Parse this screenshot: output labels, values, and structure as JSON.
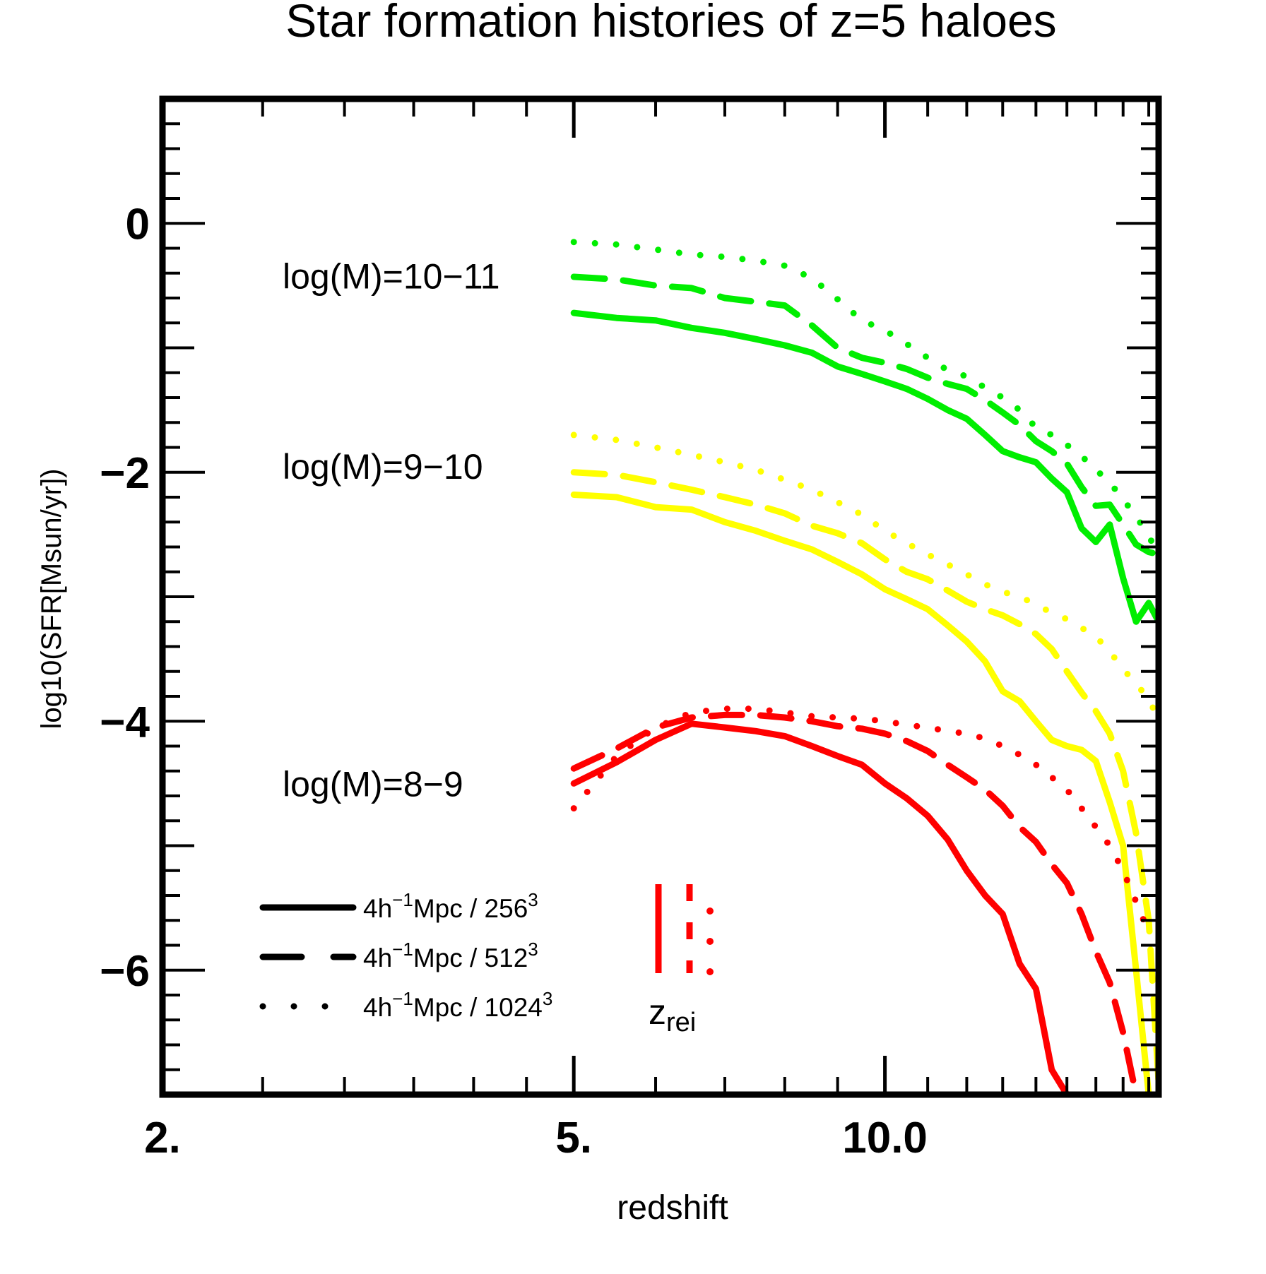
{
  "chart_data": {
    "type": "line",
    "title": "Star formation histories of z=5 haloes",
    "xlabel": "redshift",
    "ylabel_main": "log10(SFR[Msun/yr])",
    "x_scale": "log",
    "xlim": [
      2.0,
      18.4
    ],
    "ylim": [
      -7.0,
      1.0
    ],
    "x_major_ticks": [
      2.0,
      5.0,
      10.0
    ],
    "x_tick_labels": [
      "2.",
      "5.",
      "10.0"
    ],
    "y_major_ticks": [
      0,
      -2,
      -4,
      -6
    ],
    "y_tick_labels": [
      "0",
      "−2",
      "−4",
      "−6"
    ],
    "grid": false,
    "colors": {
      "mass_10_11": "#00ee00",
      "mass_9_10": "#ffff00",
      "mass_8_9": "#ff0000",
      "axes": "#000000"
    },
    "group_labels": [
      {
        "text": "log(M)=10−11",
        "y": -0.42
      },
      {
        "text": "log(M)=9−10",
        "y": -1.95
      },
      {
        "text": "log(M)=8−9",
        "y": -4.5
      }
    ],
    "legend": {
      "entries": [
        {
          "style": "solid",
          "label_main": "4h",
          "label_sup": "−1",
          "label_rest": "Mpc / 256",
          "label_sup2": "3"
        },
        {
          "style": "dashed",
          "label_main": "4h",
          "label_sup": "−1",
          "label_rest": "Mpc / 512",
          "label_sup2": "3"
        },
        {
          "style": "dotted",
          "label_main": "4h",
          "label_sup": "−1",
          "label_rest": "Mpc / 1024",
          "label_sup2": "3"
        }
      ],
      "placement": "bottom-left"
    },
    "zrei": {
      "label_main": "z",
      "label_sub": "rei",
      "color": "#ff0000"
    },
    "series": [
      {
        "group": "10-11",
        "style": "solid",
        "color": "#00ee00",
        "x": [
          5.0,
          5.5,
          6.0,
          6.5,
          7.0,
          7.5,
          8.0,
          8.5,
          9.0,
          9.5,
          10.0,
          10.5,
          11.0,
          11.5,
          12.0,
          12.5,
          13.0,
          13.5,
          14.0,
          14.5,
          15.0,
          15.5,
          16.0,
          16.5,
          17.0,
          17.5,
          18.0,
          18.4
        ],
        "y": [
          -0.72,
          -0.76,
          -0.78,
          -0.84,
          -0.88,
          -0.93,
          -0.98,
          -1.04,
          -1.15,
          -1.21,
          -1.27,
          -1.33,
          -1.41,
          -1.5,
          -1.57,
          -1.7,
          -1.83,
          -1.88,
          -1.92,
          -2.05,
          -2.16,
          -2.45,
          -2.56,
          -2.42,
          -2.85,
          -3.2,
          -3.05,
          -3.2
        ]
      },
      {
        "group": "10-11",
        "style": "dashed",
        "color": "#00ee00",
        "x": [
          5.0,
          5.5,
          6.0,
          6.5,
          7.0,
          7.5,
          8.0,
          8.5,
          9.0,
          9.5,
          10.0,
          10.5,
          11.0,
          11.5,
          12.0,
          12.5,
          13.0,
          13.5,
          14.0,
          14.5,
          15.0,
          15.5,
          16.0,
          16.5,
          17.0,
          17.5,
          18.0,
          18.4
        ],
        "y": [
          -0.43,
          -0.45,
          -0.5,
          -0.52,
          -0.6,
          -0.63,
          -0.66,
          -0.82,
          -1.0,
          -1.08,
          -1.12,
          -1.17,
          -1.24,
          -1.29,
          -1.33,
          -1.42,
          -1.52,
          -1.62,
          -1.75,
          -1.83,
          -1.93,
          -2.12,
          -2.27,
          -2.26,
          -2.42,
          -2.58,
          -2.64,
          -2.66
        ]
      },
      {
        "group": "10-11",
        "style": "dotted",
        "color": "#00ee00",
        "x": [
          5.0,
          5.5,
          6.0,
          6.5,
          7.0,
          7.5,
          8.0,
          8.5,
          9.0,
          9.5,
          10.0,
          10.5,
          11.0,
          11.5,
          12.0,
          12.5,
          13.0,
          13.5,
          14.0,
          14.5,
          15.0,
          15.5,
          16.0,
          16.5,
          17.0,
          17.5,
          18.0,
          18.4
        ],
        "y": [
          -0.15,
          -0.17,
          -0.21,
          -0.25,
          -0.27,
          -0.3,
          -0.34,
          -0.44,
          -0.61,
          -0.78,
          -0.86,
          -0.97,
          -1.08,
          -1.18,
          -1.23,
          -1.32,
          -1.4,
          -1.5,
          -1.64,
          -1.7,
          -1.78,
          -1.87,
          -1.98,
          -2.08,
          -2.22,
          -2.35,
          -2.52,
          -2.64
        ]
      },
      {
        "group": "9-10",
        "style": "solid",
        "color": "#ffff00",
        "x": [
          5.0,
          5.5,
          6.0,
          6.5,
          7.0,
          7.5,
          8.0,
          8.5,
          9.0,
          9.5,
          10.0,
          10.5,
          11.0,
          11.5,
          12.0,
          12.5,
          13.0,
          13.5,
          14.0,
          14.5,
          15.0,
          15.5,
          16.0,
          16.5,
          17.0,
          17.5,
          18.0,
          18.4
        ],
        "y": [
          -2.18,
          -2.2,
          -2.28,
          -2.3,
          -2.4,
          -2.47,
          -2.55,
          -2.62,
          -2.72,
          -2.82,
          -2.94,
          -3.02,
          -3.1,
          -3.23,
          -3.36,
          -3.52,
          -3.76,
          -3.84,
          -4.0,
          -4.15,
          -4.2,
          -4.23,
          -4.32,
          -4.65,
          -5.0,
          -6.0,
          -7.0,
          -7.0
        ]
      },
      {
        "group": "9-10",
        "style": "dashed",
        "color": "#ffff00",
        "x": [
          5.0,
          5.5,
          6.0,
          6.5,
          7.0,
          7.5,
          8.0,
          8.5,
          9.0,
          9.5,
          10.0,
          10.5,
          11.0,
          11.5,
          12.0,
          12.5,
          13.0,
          13.5,
          14.0,
          14.5,
          15.0,
          15.5,
          16.0,
          16.5,
          17.0,
          17.5,
          18.0,
          18.4
        ],
        "y": [
          -2.0,
          -2.02,
          -2.08,
          -2.14,
          -2.2,
          -2.26,
          -2.33,
          -2.43,
          -2.49,
          -2.57,
          -2.7,
          -2.8,
          -2.86,
          -2.95,
          -3.04,
          -3.1,
          -3.15,
          -3.22,
          -3.3,
          -3.42,
          -3.6,
          -3.77,
          -3.92,
          -4.1,
          -4.4,
          -4.9,
          -5.6,
          -6.9
        ]
      },
      {
        "group": "9-10",
        "style": "dotted",
        "color": "#ffff00",
        "x": [
          5.0,
          5.5,
          6.0,
          6.5,
          7.0,
          7.5,
          8.0,
          8.5,
          9.0,
          9.5,
          10.0,
          10.5,
          11.0,
          11.5,
          12.0,
          12.5,
          13.0,
          13.5,
          14.0,
          14.5,
          15.0,
          15.5,
          16.0,
          16.5,
          17.0,
          17.5,
          18.0,
          18.4
        ],
        "y": [
          -1.7,
          -1.74,
          -1.8,
          -1.86,
          -1.92,
          -1.98,
          -2.06,
          -2.14,
          -2.24,
          -2.34,
          -2.47,
          -2.57,
          -2.66,
          -2.74,
          -2.82,
          -2.9,
          -2.96,
          -3.0,
          -3.06,
          -3.13,
          -3.18,
          -3.25,
          -3.32,
          -3.44,
          -3.58,
          -3.7,
          -3.82,
          -3.99
        ]
      },
      {
        "group": "8-9",
        "style": "solid",
        "color": "#ff0000",
        "x": [
          5.0,
          5.5,
          6.0,
          6.5,
          7.0,
          7.5,
          8.0,
          8.5,
          9.0,
          9.5,
          10.0,
          10.5,
          11.0,
          11.5,
          12.0,
          12.5,
          13.0,
          13.5,
          14.0,
          14.5,
          15.0,
          15.5,
          16.0,
          16.5,
          17.0,
          17.5,
          18.0
        ],
        "y": [
          -4.5,
          -4.33,
          -4.15,
          -4.02,
          -4.05,
          -4.08,
          -4.12,
          -4.2,
          -4.28,
          -4.35,
          -4.5,
          -4.62,
          -4.76,
          -4.95,
          -5.2,
          -5.4,
          -5.55,
          -5.95,
          -6.15,
          -6.8,
          -7.0,
          -7.0,
          -7.0,
          -7.0,
          -7.0,
          -7.0,
          -7.0
        ]
      },
      {
        "group": "8-9",
        "style": "dashed",
        "color": "#ff0000",
        "x": [
          5.0,
          5.5,
          6.0,
          6.5,
          7.0,
          7.5,
          8.0,
          8.5,
          9.0,
          9.5,
          10.0,
          10.5,
          11.0,
          11.5,
          12.0,
          12.5,
          13.0,
          13.5,
          14.0,
          14.5,
          15.0,
          15.5,
          16.0,
          16.5,
          17.0,
          17.5,
          18.0
        ],
        "y": [
          -4.38,
          -4.22,
          -4.05,
          -3.97,
          -3.95,
          -3.95,
          -3.97,
          -4.0,
          -4.04,
          -4.06,
          -4.1,
          -4.16,
          -4.24,
          -4.35,
          -4.45,
          -4.55,
          -4.68,
          -4.85,
          -4.97,
          -5.15,
          -5.3,
          -5.55,
          -5.85,
          -6.1,
          -6.5,
          -7.0,
          -7.0
        ]
      },
      {
        "group": "8-9",
        "style": "dotted",
        "color": "#ff0000",
        "x": [
          5.0,
          5.5,
          6.0,
          6.5,
          7.0,
          7.5,
          8.0,
          8.5,
          9.0,
          9.5,
          10.0,
          10.5,
          11.0,
          11.5,
          12.0,
          12.5,
          13.0,
          13.5,
          14.0,
          14.5,
          15.0,
          15.5,
          16.0,
          16.5,
          17.0,
          17.5,
          18.0
        ],
        "y": [
          -4.7,
          -4.28,
          -4.05,
          -3.93,
          -3.9,
          -3.9,
          -3.93,
          -3.96,
          -3.97,
          -3.98,
          -4.0,
          -4.03,
          -4.05,
          -4.08,
          -4.1,
          -4.14,
          -4.2,
          -4.27,
          -4.35,
          -4.45,
          -4.55,
          -4.7,
          -4.85,
          -5.0,
          -5.2,
          -5.45,
          -5.7
        ]
      }
    ]
  }
}
